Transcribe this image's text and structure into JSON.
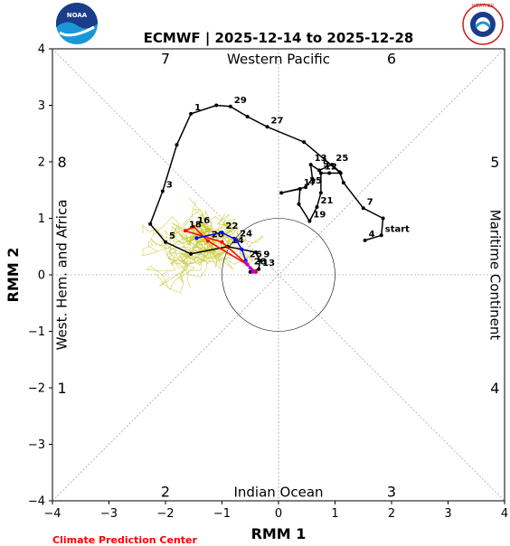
{
  "chart_data": {
    "type": "scatter",
    "title": "ECMWF | 2025-12-14 to 2025-12-28",
    "xlabel": "RMM 1",
    "ylabel": "RMM 2",
    "xlim": [
      -4,
      4
    ],
    "ylim": [
      -4,
      4
    ],
    "x_ticks": [
      -4,
      -3,
      -2,
      -1,
      0,
      1,
      2,
      3,
      4
    ],
    "y_ticks": [
      -4,
      -3,
      -2,
      -1,
      0,
      1,
      2,
      3,
      4
    ],
    "x_tick_labels": [
      "−4",
      "−3",
      "−2",
      "−1",
      "0",
      "1",
      "2",
      "3",
      "4"
    ],
    "y_tick_labels": [
      "−4",
      "−3",
      "−2",
      "−1",
      "0",
      "1",
      "2",
      "3",
      "4"
    ],
    "unit_circle_radius": 1,
    "phases": [
      {
        "label": "7",
        "x": -2.0,
        "y": 3.83
      },
      {
        "label": "6",
        "x": 2.0,
        "y": 3.83
      },
      {
        "label": "5",
        "x": 3.83,
        "y": 2.0
      },
      {
        "label": "4",
        "x": 3.83,
        "y": -2.0
      },
      {
        "label": "3",
        "x": 2.0,
        "y": -3.83
      },
      {
        "label": "2",
        "x": -2.0,
        "y": -3.83
      },
      {
        "label": "1",
        "x": -3.83,
        "y": -2.0
      },
      {
        "label": "8",
        "x": -3.83,
        "y": 2.0
      }
    ],
    "regions": {
      "top": "Western Pacific",
      "bottom": "Indian Ocean",
      "left": "West. Hem. and Africa",
      "right": "Maritime Continent"
    },
    "series": [
      {
        "color": "#000000",
        "points": [
          {
            "x": 1.53,
            "y": 0.61,
            "label": "4"
          },
          {
            "x": 1.82,
            "y": 0.7,
            "label": "start"
          },
          {
            "x": 1.85,
            "y": 1.0,
            "label": ""
          },
          {
            "x": 1.5,
            "y": 1.18,
            "label": "7"
          },
          {
            "x": 1.15,
            "y": 1.63,
            "label": ""
          },
          {
            "x": 1.08,
            "y": 1.82,
            "label": ""
          },
          {
            "x": 0.95,
            "y": 1.95,
            "label": "25"
          },
          {
            "x": 0.72,
            "y": 1.85,
            "label": "9"
          },
          {
            "x": 0.57,
            "y": 1.95,
            "label": "13"
          },
          {
            "x": 0.6,
            "y": 1.7,
            "label": ""
          },
          {
            "x": 0.48,
            "y": 1.55,
            "label": "15"
          },
          {
            "x": 0.05,
            "y": 1.45,
            "label": ""
          },
          {
            "x": 0.38,
            "y": 1.52,
            "label": "17"
          },
          {
            "x": 0.36,
            "y": 1.25,
            "label": ""
          },
          {
            "x": 0.55,
            "y": 0.95,
            "label": "19"
          },
          {
            "x": 0.68,
            "y": 1.2,
            "label": "21"
          },
          {
            "x": 0.75,
            "y": 1.45,
            "label": ""
          },
          {
            "x": 0.75,
            "y": 1.8,
            "label": "12"
          },
          {
            "x": 0.9,
            "y": 1.8,
            "label": ""
          },
          {
            "x": 1.1,
            "y": 1.8,
            "label": ""
          },
          {
            "x": 0.45,
            "y": 2.35,
            "label": ""
          },
          {
            "x": -0.2,
            "y": 2.62,
            "label": "27"
          },
          {
            "x": -0.55,
            "y": 2.8,
            "label": ""
          },
          {
            "x": -0.85,
            "y": 2.98,
            "label": "29"
          },
          {
            "x": -1.1,
            "y": 3.0,
            "label": ""
          },
          {
            "x": -1.55,
            "y": 2.85,
            "label": "1"
          },
          {
            "x": -1.8,
            "y": 2.3,
            "label": ""
          },
          {
            "x": -2.05,
            "y": 1.48,
            "label": "3"
          },
          {
            "x": -2.27,
            "y": 0.9,
            "label": ""
          },
          {
            "x": -2.0,
            "y": 0.58,
            "label": "5"
          },
          {
            "x": -1.55,
            "y": 0.37,
            "label": ""
          },
          {
            "x": -0.9,
            "y": 0.5,
            "label": "14"
          },
          {
            "x": -0.4,
            "y": 0.4,
            "label": ""
          },
          {
            "x": -0.33,
            "y": 0.25,
            "label": "9"
          },
          {
            "x": -0.35,
            "y": 0.1,
            "label": "13"
          },
          {
            "x": -0.5,
            "y": 0.05,
            "label": ""
          }
        ]
      },
      {
        "color": "#ff0000",
        "points": [
          {
            "x": -0.55,
            "y": 0.18,
            "label": ""
          },
          {
            "x": -1.25,
            "y": 0.6,
            "label": "20"
          },
          {
            "x": -1.5,
            "y": 0.85,
            "label": "16"
          },
          {
            "x": -1.65,
            "y": 0.78,
            "label": "18"
          },
          {
            "x": -1.0,
            "y": 0.58,
            "label": ""
          },
          {
            "x": -0.4,
            "y": 0.05,
            "label": ""
          }
        ]
      },
      {
        "color": "#0000ff",
        "points": [
          {
            "x": -1.45,
            "y": 0.65,
            "label": ""
          },
          {
            "x": -1.0,
            "y": 0.75,
            "label": "22"
          },
          {
            "x": -0.75,
            "y": 0.62,
            "label": "24"
          },
          {
            "x": -0.65,
            "y": 0.45,
            "label": ""
          },
          {
            "x": -0.58,
            "y": 0.25,
            "label": "26"
          }
        ]
      },
      {
        "color": "#aa00ff",
        "points": [
          {
            "x": -0.58,
            "y": 0.22,
            "label": ""
          },
          {
            "x": -0.5,
            "y": 0.12,
            "label": "28"
          },
          {
            "x": -0.45,
            "y": 0.05,
            "label": ""
          }
        ]
      }
    ],
    "ensemble_color": "#c8c832",
    "ensemble_spread_center": [
      -1.3,
      0.6
    ]
  },
  "logos": {
    "left": "NOAA",
    "right": "NATIONAL WEATHER SERVICE"
  },
  "footer": "Climate Prediction Center"
}
